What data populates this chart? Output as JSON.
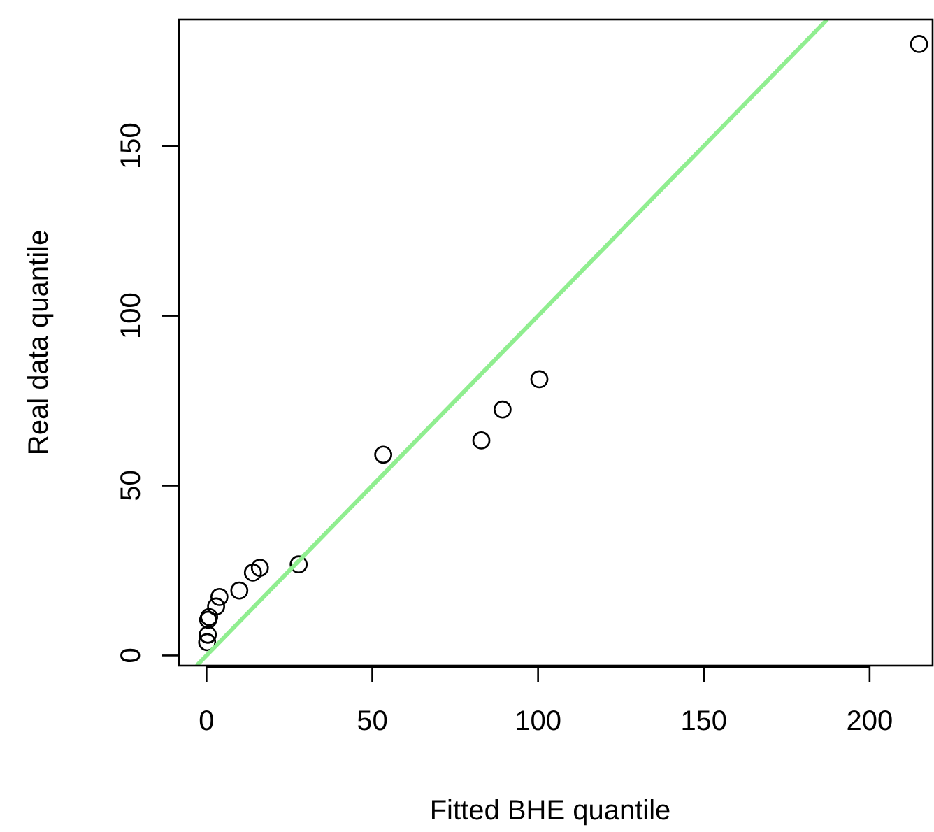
{
  "chart_data": {
    "type": "scatter",
    "xlabel": "Fitted BHE quantile",
    "ylabel": "Real data quantile",
    "xlim": [
      -8.3,
      219
    ],
    "ylim": [
      -3,
      187.2
    ],
    "xticks": [
      0,
      50,
      100,
      150,
      200
    ],
    "yticks": [
      0,
      50,
      100,
      150
    ],
    "series": [
      {
        "color": "#000000",
        "marker": "circle",
        "x": [
          0.2,
          0.4,
          0.5,
          0.8,
          2.9,
          3.9,
          9.9,
          14.0,
          16.1,
          27.8,
          53.3,
          82.9,
          89.3,
          100.4,
          214.9
        ],
        "values": [
          3.9,
          6.1,
          10.5,
          11.3,
          14.4,
          17.2,
          19.1,
          24.4,
          25.8,
          26.8,
          59.1,
          63.3,
          72.4,
          81.3,
          180.0
        ]
      },
      {
        "type": "line",
        "color": "#90ee90",
        "x": [
          -3,
          187.2
        ],
        "values": [
          -3,
          187.2
        ]
      }
    ]
  }
}
